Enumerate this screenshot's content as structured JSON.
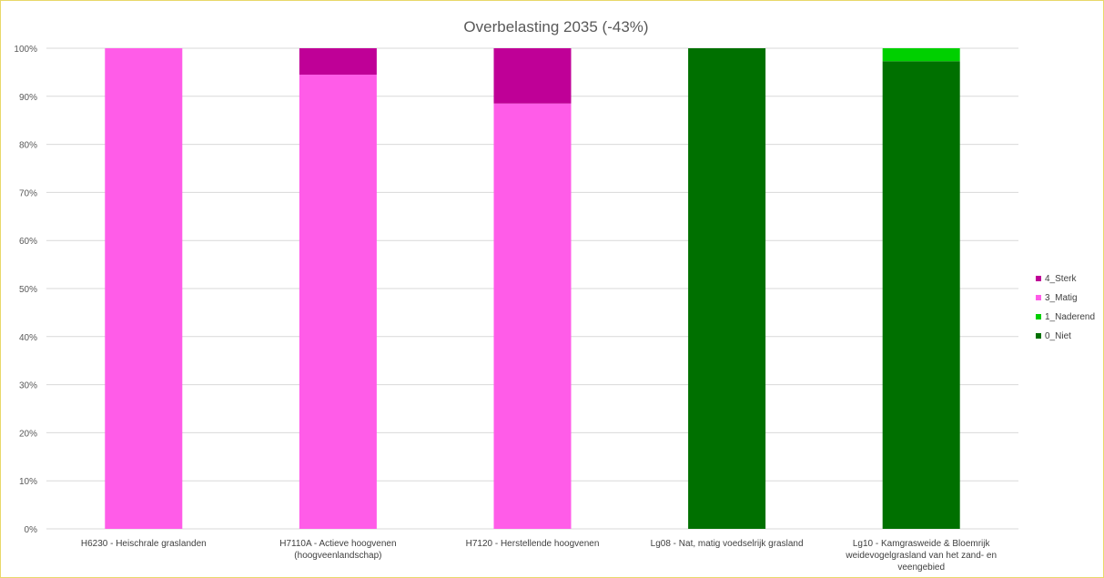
{
  "chart_data": {
    "type": "bar",
    "stacked": true,
    "percent_stacked": true,
    "title": "Overbelasting 2035 (-43%)",
    "xlabel": "",
    "ylabel": "",
    "ylim": [
      0,
      100
    ],
    "yticks": [
      "0%",
      "10%",
      "20%",
      "30%",
      "40%",
      "50%",
      "60%",
      "70%",
      "80%",
      "90%",
      "100%"
    ],
    "grid": true,
    "legend_position": "right",
    "categories": [
      [
        "H6230 - Heischrale graslanden"
      ],
      [
        "H7110A - Actieve hoogvenen",
        "(hoogveenlandschap)"
      ],
      [
        "H7120 - Herstellende hoogvenen"
      ],
      [
        "Lg08 - Nat, matig voedselrijk grasland"
      ],
      [
        "Lg10 - Kamgrasweide & Bloemrijk",
        "weidevogelgrasland van het zand- en",
        "veengebied"
      ]
    ],
    "series": [
      {
        "name": "0_Niet",
        "color": "#007000",
        "values": [
          0,
          0,
          0,
          100,
          97.3
        ]
      },
      {
        "name": "1_Naderend",
        "color": "#00d000",
        "values": [
          0,
          0,
          0,
          0,
          2.7
        ]
      },
      {
        "name": "3_Matig",
        "color": "#ff5ce8",
        "values": [
          100,
          94.5,
          88.5,
          0,
          0
        ]
      },
      {
        "name": "4_Sterk",
        "color": "#bf0097",
        "values": [
          0,
          5.5,
          11.5,
          0,
          0
        ]
      }
    ],
    "legend_order": [
      "4_Sterk",
      "3_Matig",
      "1_Naderend",
      "0_Niet"
    ]
  }
}
